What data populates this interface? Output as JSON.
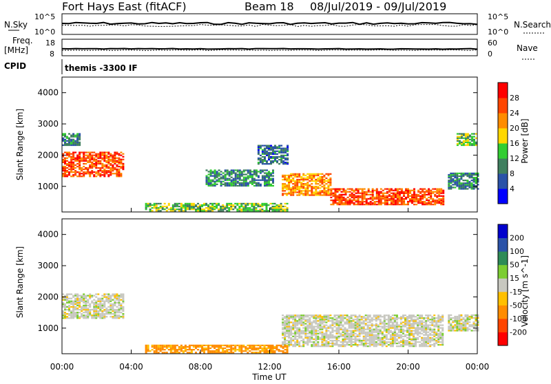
{
  "header": {
    "station": "Fort Hays East (fitACF)",
    "beam": "Beam 18",
    "date_range": "08/Jul/2019 - 09/Jul/2019"
  },
  "top_panels": {
    "nsky_label": "N.Sky",
    "nsky_ticks": [
      "10^5",
      "10^0"
    ],
    "nsearch_label": "N.Search",
    "nsearch_ticks": [
      "10^5",
      "10^0"
    ],
    "freq_label_1": "Freq.",
    "freq_label_2": "[MHz]",
    "freq_ticks": [
      "18",
      "8"
    ],
    "nave_label": "Nave",
    "nave_ticks": [
      "60",
      "0"
    ],
    "cpid_label": "CPID",
    "cpid_text": "themis -3300 IF"
  },
  "power_panel": {
    "ylabel": "Slant Range [km]",
    "yticks": [
      "4000",
      "3000",
      "2000",
      "1000"
    ],
    "colorbar_label": "Power [dB]",
    "colorbar_ticks": [
      "28",
      "24",
      "20",
      "16",
      "12",
      "8",
      "4"
    ],
    "colors": [
      "#0000ff",
      "#2a52a8",
      "#3f7f5f",
      "#32cd32",
      "#ffd700",
      "#ff8c00",
      "#ff4500",
      "#ff0000"
    ]
  },
  "velocity_panel": {
    "ylabel": "Slant Range [km]",
    "yticks": [
      "4000",
      "3000",
      "2000",
      "1000"
    ],
    "colorbar_label": "Velocity [m s^-1]",
    "colorbar_ticks": [
      "200",
      "100",
      "50",
      "15",
      "-15",
      "-50",
      "-100",
      "-200"
    ],
    "colors": [
      "#0000cd",
      "#2a52a8",
      "#2e8b57",
      "#7ccd32",
      "#c8c8c0",
      "#ffc000",
      "#ff8c00",
      "#ff4500",
      "#ff0000"
    ]
  },
  "x_axis": {
    "ticks": [
      "00:00",
      "04:00",
      "08:00",
      "12:00",
      "16:00",
      "20:00",
      "00:00"
    ],
    "label": "Time UT"
  },
  "chart_data": {
    "type": "heatmap",
    "title": "Fort Hays East (fitACF) Beam 18 08/Jul/2019 - 09/Jul/2019",
    "xlabel": "Time UT",
    "ylabel": "Slant Range [km]",
    "xlim_hours": [
      0,
      24
    ],
    "ylim_km": [
      180,
      4500
    ],
    "power_colorbar": {
      "label": "Power [dB]",
      "range": [
        0,
        32
      ]
    },
    "velocity_colorbar": {
      "label": "Velocity [m s^-1]",
      "range": [
        -250,
        250
      ]
    },
    "power_echo_regions": [
      {
        "t_start_h": 0.0,
        "t_end_h": 3.6,
        "range_km": [
          1300,
          2100
        ],
        "power_db": 26
      },
      {
        "t_start_h": 0.0,
        "t_end_h": 1.0,
        "range_km": [
          2300,
          2700
        ],
        "power_db": 10
      },
      {
        "t_start_h": 12.7,
        "t_end_h": 15.5,
        "range_km": [
          700,
          1400
        ],
        "power_db": 22
      },
      {
        "t_start_h": 15.5,
        "t_end_h": 22.0,
        "range_km": [
          400,
          900
        ],
        "power_db": 26
      },
      {
        "t_start_h": 8.3,
        "t_end_h": 12.2,
        "range_km": [
          1000,
          1500
        ],
        "power_db": 10
      },
      {
        "t_start_h": 11.3,
        "t_end_h": 13.0,
        "range_km": [
          1700,
          2300
        ],
        "power_db": 8
      },
      {
        "t_start_h": 22.3,
        "t_end_h": 24.0,
        "range_km": [
          900,
          1400
        ],
        "power_db": 10
      },
      {
        "t_start_h": 22.8,
        "t_end_h": 24.0,
        "range_km": [
          2300,
          2700
        ],
        "power_db": 14
      },
      {
        "t_start_h": 4.8,
        "t_end_h": 13.0,
        "range_km": [
          200,
          450
        ],
        "power_db": 14
      }
    ],
    "velocity_echo_regions": [
      {
        "t_start_h": 0.0,
        "t_end_h": 3.6,
        "range_km": [
          1300,
          2100
        ],
        "velocity_ms": 0
      },
      {
        "t_start_h": 12.7,
        "t_end_h": 22.0,
        "range_km": [
          400,
          1400
        ],
        "velocity_ms": 0
      },
      {
        "t_start_h": 4.8,
        "t_end_h": 13.0,
        "range_km": [
          200,
          450
        ],
        "velocity_ms": -60
      },
      {
        "t_start_h": 22.3,
        "t_end_h": 24.0,
        "range_km": [
          900,
          1400
        ],
        "velocity_ms": 0
      }
    ]
  }
}
